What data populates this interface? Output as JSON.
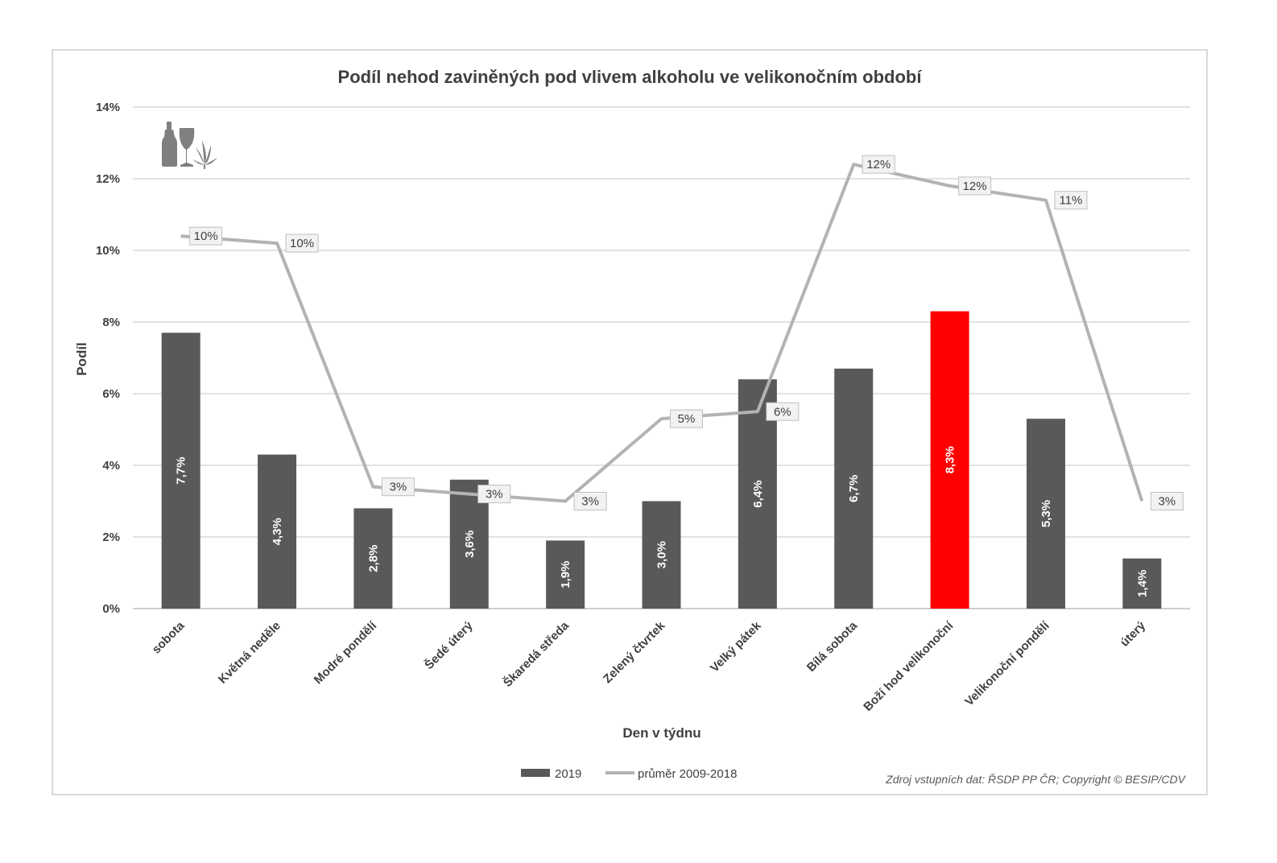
{
  "chart_data": {
    "type": "bar",
    "title": "Podíl nehod zaviněných pod vlivem alkoholu ve velikonočním období",
    "xlabel": "Den v týdnu",
    "ylabel": "Podíl",
    "ylim": [
      0,
      14
    ],
    "yticks": [
      "0%",
      "2%",
      "4%",
      "6%",
      "8%",
      "10%",
      "12%",
      "14%"
    ],
    "grid": true,
    "legend_position": "bottom",
    "categories": [
      "sobota",
      "Květná neděle",
      "Modré pondělí",
      "Šedé úterý",
      "Škaredá středa",
      "Zelený čtvrtek",
      "Velký pátek",
      "Bílá sobota",
      "Boží hod velikonoční",
      "Velikonoční pondělí",
      "úterý"
    ],
    "series": [
      {
        "name": "2019",
        "type": "bar",
        "color": "#595959",
        "highlight_color": "#ff0000",
        "highlight_index": 8,
        "values": [
          7.7,
          4.3,
          2.8,
          3.6,
          1.9,
          3.0,
          6.4,
          6.7,
          8.3,
          5.3,
          1.4
        ],
        "labels": [
          "7,7%",
          "4,3%",
          "2,8%",
          "3,6%",
          "1,9%",
          "3,0%",
          "6,4%",
          "6,7%",
          "8,3%",
          "5,3%",
          "1,4%"
        ]
      },
      {
        "name": "průměr 2009-2018",
        "type": "line",
        "color": "#b3b3b3",
        "values": [
          10.4,
          10.2,
          3.4,
          3.2,
          3.0,
          5.3,
          5.5,
          12.4,
          11.8,
          11.4,
          3.0
        ],
        "labels": [
          "10%",
          "10%",
          "3%",
          "3%",
          "3%",
          "5%",
          "6%",
          "12%",
          "12%",
          "11%",
          "3%"
        ]
      }
    ],
    "source": "Zdroj vstupních dat: ŘSDP PP ČR; Copyright © BESIP/CDV",
    "icons": [
      "bottle-icon",
      "wine-glass-icon",
      "cannabis-leaf-icon"
    ]
  }
}
